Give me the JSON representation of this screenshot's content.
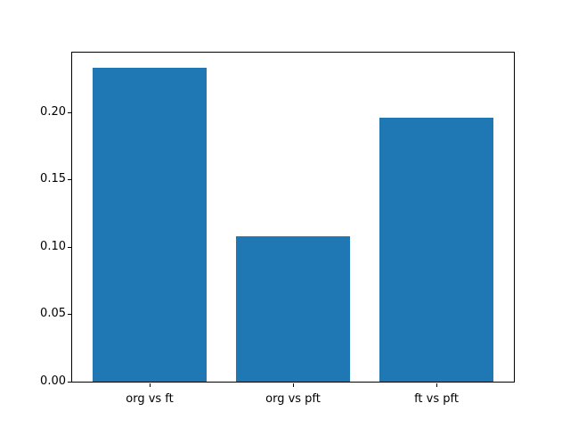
{
  "chart_data": {
    "type": "bar",
    "title": "",
    "xlabel": "",
    "ylabel": "",
    "categories": [
      "org vs ft",
      "org vs pft",
      "ft vs pft"
    ],
    "values": [
      0.233,
      0.108,
      0.196
    ],
    "ylim": [
      0,
      0.244
    ],
    "yticks": [
      0.0,
      0.05,
      0.1,
      0.15,
      0.2
    ],
    "ytick_labels": [
      "0.00",
      "0.05",
      "0.10",
      "0.15",
      "0.20"
    ],
    "bar_color": "#1f77b4",
    "background_color": "#ffffff",
    "spine_color": "#000000",
    "grid": false,
    "legend": null,
    "bar_width_fraction": 0.8,
    "x_margin_fraction": 0.05
  }
}
